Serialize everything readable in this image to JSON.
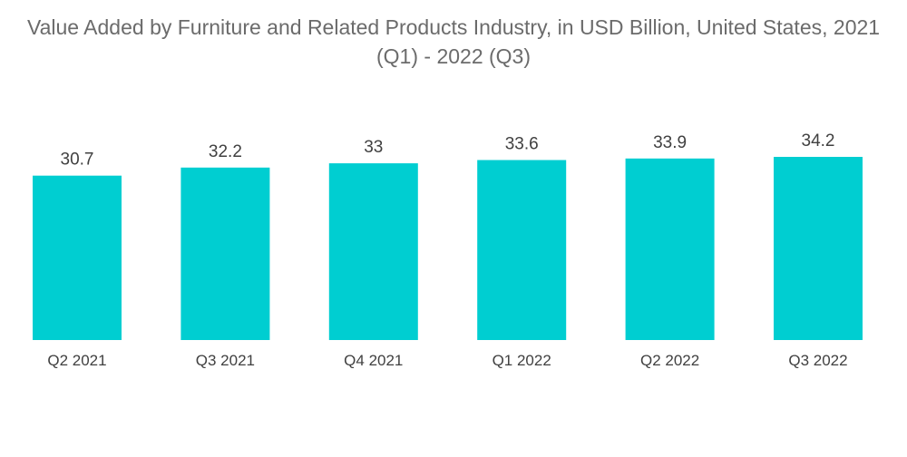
{
  "chart_data": {
    "type": "bar",
    "title_line1": "Value Added by Furniture and Related Products Industry, in USD Billion, United States, 2021",
    "title_line2": "(Q1) - 2022 (Q3)",
    "categories": [
      "Q2 2021",
      "Q3 2021",
      "Q4 2021",
      "Q1 2022",
      "Q2 2022",
      "Q3 2022"
    ],
    "values": [
      30.7,
      32.2,
      33,
      33.6,
      33.9,
      34.2
    ],
    "value_labels": [
      "30.7",
      "32.2",
      "33",
      "33.6",
      "33.9",
      "34.2"
    ],
    "bar_color": "#00ced1",
    "ylim": [
      0,
      34.2
    ],
    "grid": false,
    "legend": "none"
  }
}
